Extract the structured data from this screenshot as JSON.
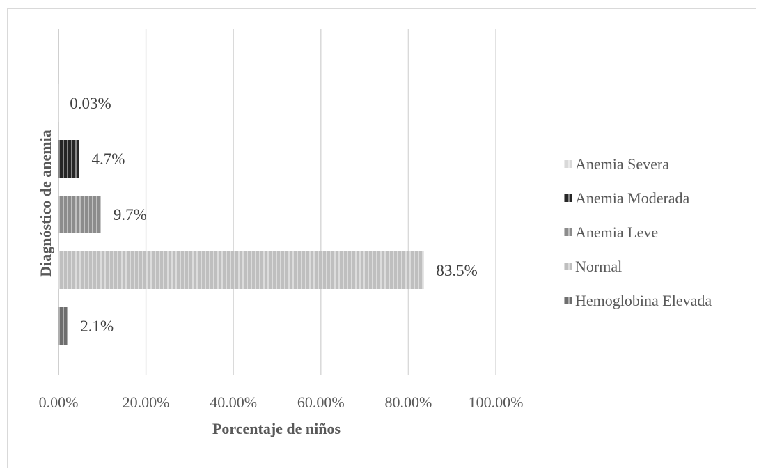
{
  "chart_data": {
    "type": "bar",
    "orientation": "horizontal",
    "title": "",
    "xlabel": "Porcentaje de niños",
    "ylabel": "Diagnóstico de anemia",
    "xlim": [
      0,
      100
    ],
    "x_ticks": [
      "0.00%",
      "20.00%",
      "40.00%",
      "60.00%",
      "80.00%",
      "100.00%"
    ],
    "grid": true,
    "legend_position": "right",
    "series": [
      {
        "name": "Anemia Severa",
        "value": 0.03,
        "label": "0.03%",
        "color": "#d9d9d9"
      },
      {
        "name": "Anemia Moderada",
        "value": 4.7,
        "label": "4.7%",
        "color": "#262626"
      },
      {
        "name": "Anemia Leve",
        "value": 9.7,
        "label": "9.7%",
        "color": "#8c8c8c"
      },
      {
        "name": "Normal",
        "value": 83.5,
        "label": "83.5%",
        "color": "#bfbfbf"
      },
      {
        "name": "Hemoglobina Elevada",
        "value": 2.1,
        "label": "2.1%",
        "color": "#6e6e6e"
      }
    ]
  }
}
